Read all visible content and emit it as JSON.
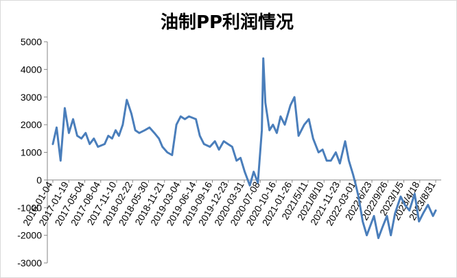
{
  "chart_data": {
    "type": "line",
    "title": "油制PP利润情况",
    "xlabel": "",
    "ylabel": "",
    "ylim": [
      -3000,
      5000
    ],
    "yticks": [
      -3000,
      -2000,
      -1000,
      0,
      1000,
      2000,
      3000,
      4000,
      5000
    ],
    "xticks": [
      "2016-01-04",
      "2017-01-19",
      "2017-05-04",
      "2017-08-04",
      "2017-11-10",
      "2018-02-22",
      "2018-05-30",
      "2018-11-21",
      "2019-03-04",
      "2019-06-14",
      "2019-09-16",
      "2019-12-23",
      "2020-03-31",
      "2020-07-08",
      "2020-10-16",
      "2021-01-26",
      "2021/5/11",
      "2021/8/10",
      "2021-11-23",
      "2022-03-01",
      "2022/6/23",
      "2022/9/26",
      "2023/1/5",
      "2023/4/18",
      "2023/8/31"
    ],
    "grid": false,
    "legend": "none",
    "line_color": "#4a7ebb",
    "series": [
      {
        "x": [
          "2016-01-04",
          "2016-02-01",
          "2016-03-01",
          "2016-04-01",
          "2016-05-01",
          "2016-06-01",
          "2016-07-01",
          "2016-08-01",
          "2016-09-01",
          "2016-10-01",
          "2016-11-01",
          "2016-12-01",
          "2017-01-19",
          "2017-02-15",
          "2017-03-15",
          "2017-04-10",
          "2017-05-04",
          "2017-06-01",
          "2017-07-01",
          "2017-08-04",
          "2017-09-01",
          "2017-10-01",
          "2017-11-10",
          "2017-12-15",
          "2018-01-20",
          "2018-02-22",
          "2018-03-20",
          "2018-04-25",
          "2018-05-30",
          "2018-07-01",
          "2018-08-01",
          "2018-09-01",
          "2018-10-01",
          "2018-11-21",
          "2018-12-20",
          "2019-01-20",
          "2019-03-04",
          "2019-04-10",
          "2019-05-10",
          "2019-06-14",
          "2019-07-15",
          "2019-08-15",
          "2019-09-16",
          "2019-10-15",
          "2019-11-15",
          "2019-12-23",
          "2020-01-20",
          "2020-02-20",
          "2020-03-20",
          "2020-03-31",
          "2020-04-15",
          "2020-05-15",
          "2020-06-10",
          "2020-07-08",
          "2020-08-05",
          "2020-09-05",
          "2020-10-16",
          "2020-11-15",
          "2020-12-15",
          "2021-01-26",
          "2021-03-01",
          "2021-04-01",
          "2021/5/11",
          "2021-06-10",
          "2021-07-10",
          "2021/8/10",
          "2021-09-15",
          "2021-10-15",
          "2021-11-23",
          "2021-12-20",
          "2022-01-20",
          "2022-02-10",
          "2022-03-01",
          "2022-04-01",
          "2022-05-01",
          "2022/6/23",
          "2022-07-25",
          "2022-08-25",
          "2022/9/26",
          "2022-10-25",
          "2022-11-25",
          "2023/1/5",
          "2023-02-05",
          "2023-03-10",
          "2023/4/18",
          "2023-05-20",
          "2023-06-20",
          "2023-07-25",
          "2023/8/31",
          "2023-09-20"
        ],
        "y": [
          1300,
          1900,
          700,
          2600,
          1700,
          2200,
          1600,
          1500,
          1700,
          1300,
          1500,
          1200,
          1300,
          1600,
          1500,
          1800,
          1600,
          2000,
          2900,
          2400,
          1800,
          1700,
          1800,
          1900,
          1700,
          1500,
          1200,
          1000,
          900,
          2000,
          2300,
          2200,
          2300,
          2200,
          1600,
          1300,
          1200,
          1400,
          1100,
          1400,
          1300,
          1200,
          700,
          800,
          300,
          -200,
          300,
          -100,
          1800,
          4400,
          2800,
          1800,
          2000,
          1700,
          2300,
          2000,
          2700,
          3000,
          1600,
          2000,
          2200,
          1500,
          1000,
          1100,
          700,
          700,
          1000,
          600,
          1400,
          700,
          200,
          -200,
          -600,
          -1500,
          -2000,
          -1300,
          -2100,
          -1700,
          -1300,
          -2000,
          -1200,
          -600,
          -900,
          -1100,
          -500,
          -1500,
          -1200,
          -900,
          -1300,
          -1100
        ]
      }
    ]
  }
}
